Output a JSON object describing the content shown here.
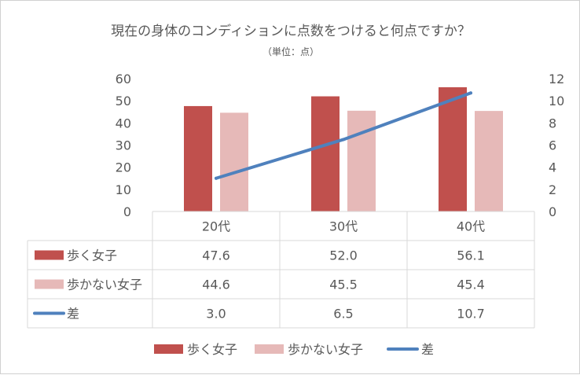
{
  "chart_data": {
    "type": "bar",
    "title": "現在の身体のコンディションに点数をつけると何点ですか？",
    "subtitle": "（単位：点）",
    "categories": [
      "20代",
      "30代",
      "40代"
    ],
    "series": [
      {
        "name": "歩く女子",
        "kind": "bar",
        "axis": "left",
        "color": "#c0504d",
        "values": [
          47.6,
          52.0,
          56.1
        ],
        "labels": [
          "47.6",
          "52.0",
          "56.1"
        ]
      },
      {
        "name": "歩かない女子",
        "kind": "bar",
        "axis": "left",
        "color": "#e6b9b8",
        "values": [
          44.6,
          45.5,
          45.4
        ],
        "labels": [
          "44.6",
          "45.5",
          "45.4"
        ]
      },
      {
        "name": "差",
        "kind": "line",
        "axis": "right",
        "color": "#4f81bd",
        "values": [
          3.0,
          6.5,
          10.7
        ],
        "labels": [
          "3.0",
          "6.5",
          "10.7"
        ]
      }
    ],
    "y_left": {
      "min": 0,
      "max": 60,
      "ticks": [
        "0",
        "10",
        "20",
        "30",
        "40",
        "50",
        "60"
      ]
    },
    "y_right": {
      "min": 0,
      "max": 12,
      "ticks": [
        "0",
        "2",
        "4",
        "6",
        "8",
        "10",
        "12"
      ]
    },
    "legend_position": "bottom",
    "data_table": true,
    "grid": false
  }
}
